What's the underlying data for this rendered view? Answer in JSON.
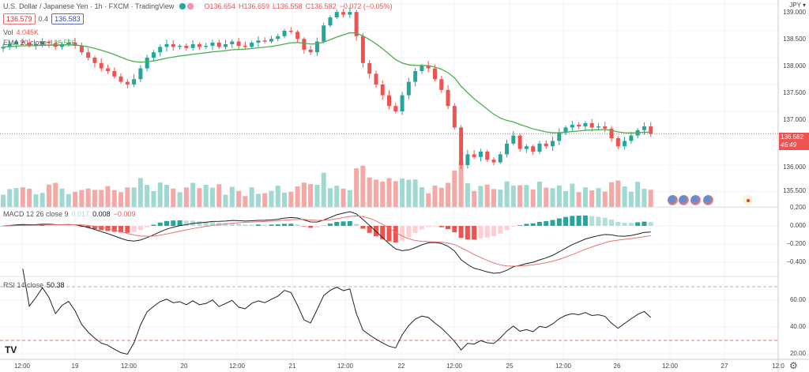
{
  "header": {
    "title": "U.S. Dollar / Japanese Yen · 1h · FXCM · TradingView",
    "open": "O136.654",
    "high": "H136.659",
    "low": "L136.558",
    "close": "C136.582",
    "change": "−0.072 (−0.05%)",
    "bid": "136.579",
    "spread": "0.4",
    "ask": "136.583"
  },
  "volume": {
    "label": "Vol",
    "value": "4.045K"
  },
  "ema": {
    "label": "EMA 20 close",
    "value": "136.566"
  },
  "macd": {
    "label": "MACD 12 26 close 9",
    "hist": "0.017",
    "macd": "0.008",
    "signal": "−0.009"
  },
  "rsi": {
    "label": "RSI 14 close",
    "value": "50.38"
  },
  "axis": {
    "currency": "JPY ▾",
    "price_ticks": [
      "139.000",
      "138.500",
      "138.000",
      "137.500",
      "137.000",
      "136.000",
      "135.500"
    ],
    "macd_ticks": [
      "0.200",
      "0.000",
      "−0.200",
      "−0.400"
    ],
    "rsi_ticks": [
      "60.00",
      "40.00",
      "20.00"
    ],
    "current_price": "136.582",
    "countdown": "46:49"
  },
  "x_ticks": [
    "12:00",
    "19",
    "12:00",
    "20",
    "12:00",
    "21",
    "12:00",
    "22",
    "12:00",
    "25",
    "12:00",
    "26",
    "12:00",
    "27",
    "12:0"
  ],
  "colors": {
    "up": "#26a69a",
    "down": "#ef5350",
    "ema": "#4caf50"
  },
  "chart_data": {
    "type": "candlestick",
    "closes": [
      138.2,
      138.25,
      138.3,
      138.28,
      138.22,
      138.25,
      138.3,
      138.27,
      138.2,
      138.25,
      138.28,
      138.22,
      138.1,
      138.0,
      137.9,
      137.8,
      137.75,
      137.65,
      137.55,
      137.5,
      137.6,
      137.8,
      138.0,
      138.1,
      138.2,
      138.25,
      138.2,
      138.22,
      138.18,
      138.25,
      138.2,
      138.22,
      138.28,
      138.2,
      138.25,
      138.3,
      138.22,
      138.2,
      138.28,
      138.32,
      138.3,
      138.35,
      138.4,
      138.5,
      138.48,
      138.35,
      138.15,
      138.1,
      138.3,
      138.6,
      138.75,
      138.85,
      138.8,
      138.85,
      138.4,
      137.9,
      137.7,
      137.5,
      137.3,
      137.1,
      137.0,
      137.3,
      137.55,
      137.75,
      137.85,
      137.8,
      137.6,
      137.4,
      137.1,
      136.7,
      136.0,
      136.2,
      136.15,
      136.25,
      136.1,
      136.05,
      136.2,
      136.4,
      136.55,
      136.3,
      136.35,
      136.25,
      136.4,
      136.35,
      136.45,
      136.6,
      136.7,
      136.75,
      136.72,
      136.78,
      136.7,
      136.72,
      136.68,
      136.5,
      136.35,
      136.45,
      136.55,
      136.65,
      136.72,
      136.58
    ],
    "ylim": [
      135.5,
      139.0
    ]
  }
}
